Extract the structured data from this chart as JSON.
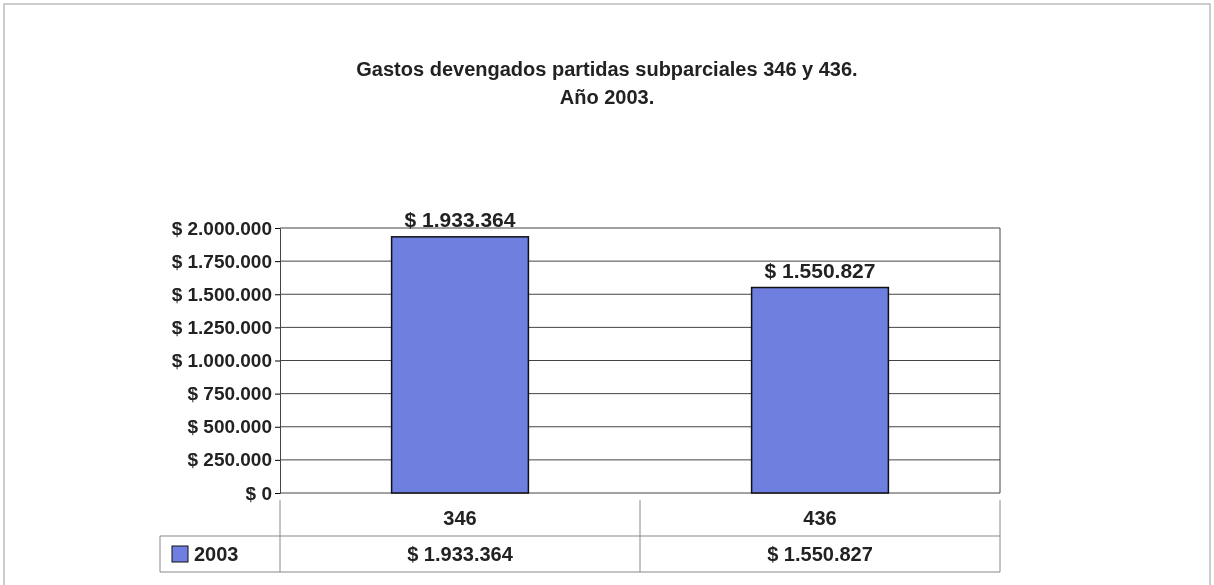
{
  "chart_data": {
    "type": "bar",
    "title": "Gastos devengados partidas subparciales 346 y 436.",
    "subtitle": "Año 2003.",
    "categories": [
      "346",
      "436"
    ],
    "series": [
      {
        "name": "2003",
        "color": "#6f7fe0",
        "values": [
          1933364,
          1550827
        ],
        "value_labels": [
          "$ 1.933.364",
          "$ 1.550.827"
        ]
      }
    ],
    "ylim": [
      0,
      2000000
    ],
    "yticks": [
      {
        "value": 0,
        "label": "$ 0"
      },
      {
        "value": 250000,
        "label": "$ 250.000"
      },
      {
        "value": 500000,
        "label": "$ 500.000"
      },
      {
        "value": 750000,
        "label": "$ 750.000"
      },
      {
        "value": 1000000,
        "label": "$ 1.000.000"
      },
      {
        "value": 1250000,
        "label": "$ 1.250.000"
      },
      {
        "value": 1500000,
        "label": "$ 1.500.000"
      },
      {
        "value": 1750000,
        "label": "$ 1.750.000"
      },
      {
        "value": 2000000,
        "label": "$ 2.000.000"
      }
    ],
    "grid": true,
    "legend": "bottom left"
  }
}
